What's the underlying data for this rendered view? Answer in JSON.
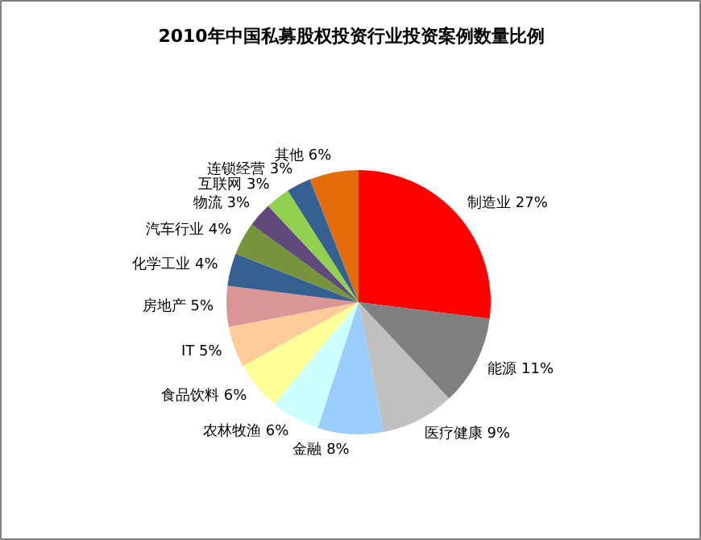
{
  "chart_data": {
    "type": "pie",
    "title": "2010年中国私募股权投资行业投资案例数量比例",
    "categories": [
      "制造业",
      "能源",
      "医疗健康",
      "金融",
      "农林牧渔",
      "食品饮料",
      "IT",
      "房地产",
      "化学工业",
      "汽车行业",
      "物流",
      "互联网",
      "连锁经营",
      "其他"
    ],
    "values": [
      27,
      11,
      9,
      8,
      6,
      6,
      5,
      5,
      4,
      4,
      3,
      3,
      3,
      6
    ],
    "value_labels": [
      "27%",
      "11%",
      "9%",
      "8%",
      "6%",
      "6%",
      "5%",
      "5%",
      "4%",
      "4%",
      "3%",
      "3%",
      "3%",
      "6%"
    ],
    "colors": [
      "#ff0000",
      "#808080",
      "#c0c0c0",
      "#99ccff",
      "#ccffff",
      "#ffff99",
      "#ffcc99",
      "#d99694",
      "#376092",
      "#77933c",
      "#604a7b",
      "#92d050",
      "#366092",
      "#e46c0a"
    ]
  }
}
